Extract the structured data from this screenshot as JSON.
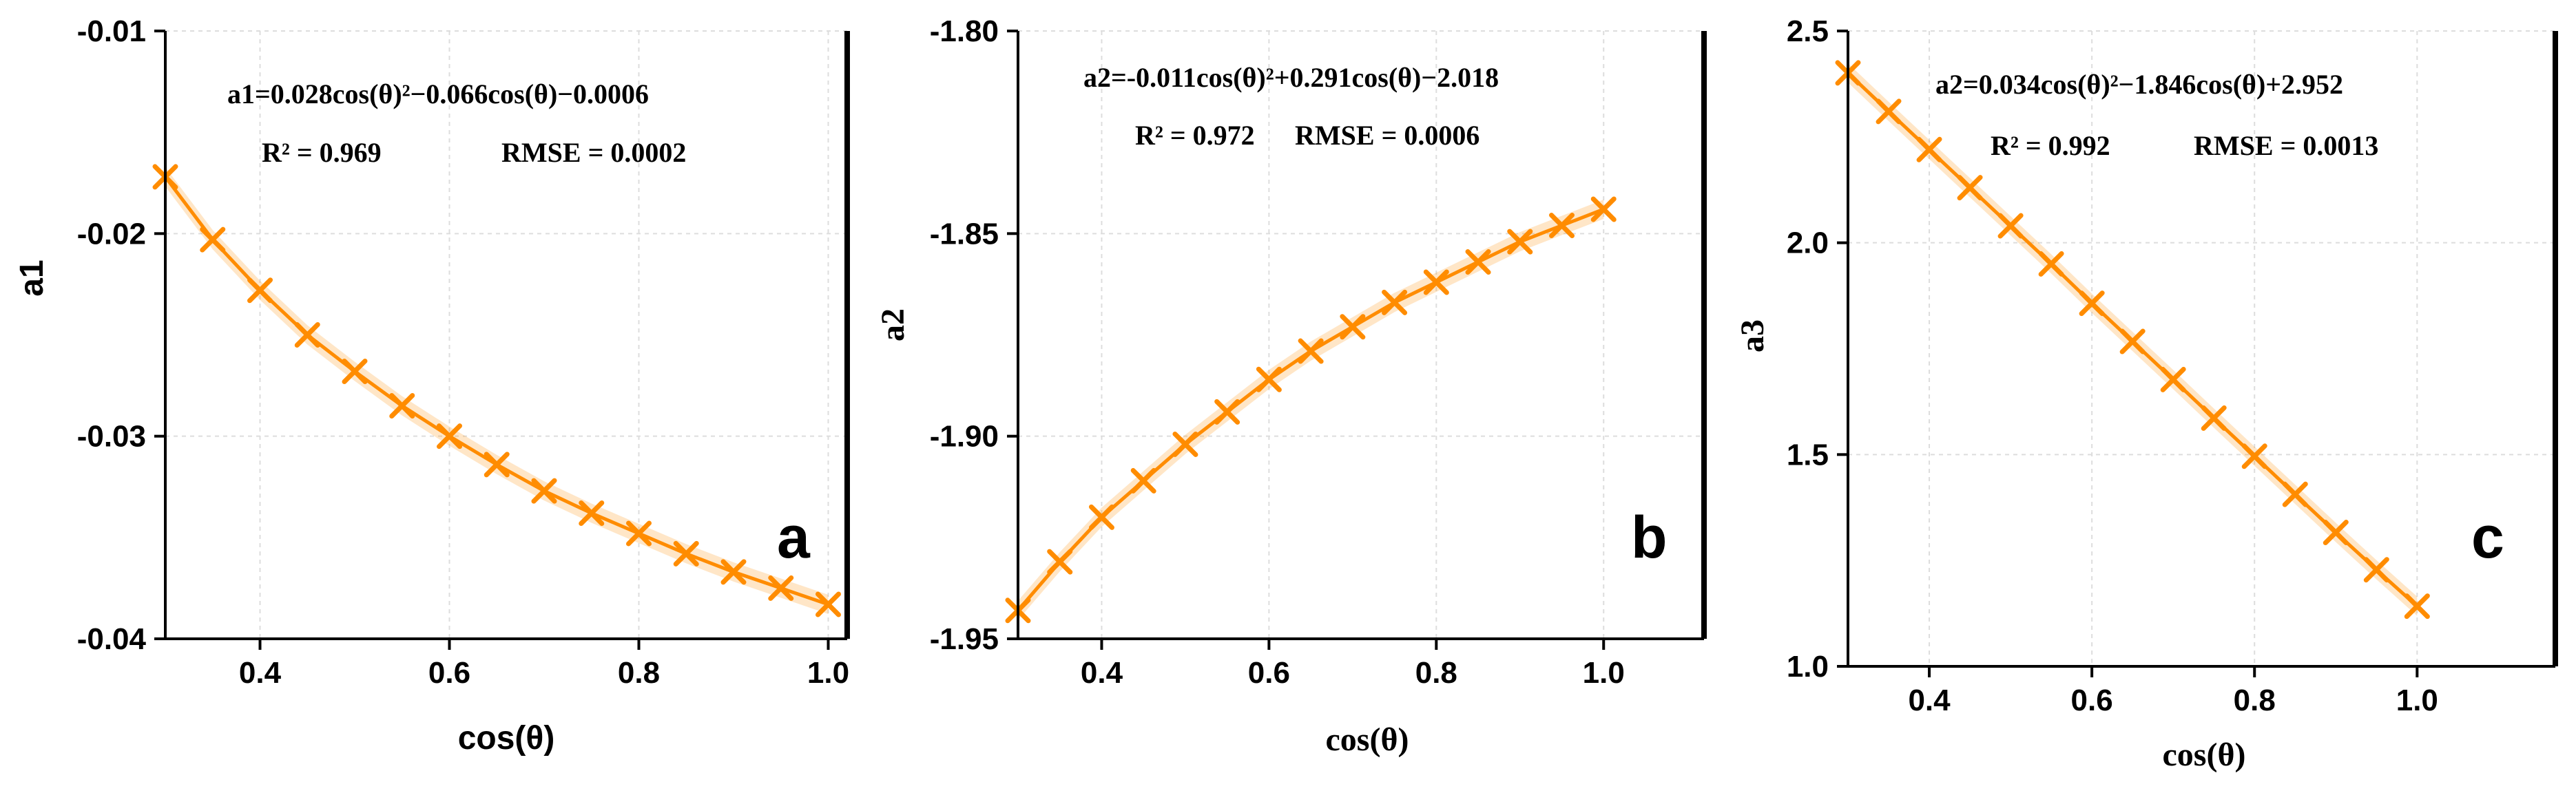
{
  "chart_data": [
    {
      "type": "line",
      "panel_letter": "a",
      "xlabel": "cos(θ)",
      "ylabel": "a1",
      "xlim": [
        0.3,
        1.02
      ],
      "ylim": [
        -0.04,
        -0.01
      ],
      "xticks": [
        0.4,
        0.6,
        0.8,
        1.0
      ],
      "xtick_labels": [
        "0.4",
        "0.6",
        "0.8",
        "1.0"
      ],
      "yticks": [
        -0.04,
        -0.03,
        -0.02,
        -0.01
      ],
      "ytick_labels": [
        "-0.04",
        "-0.03",
        "-0.02",
        "-0.01"
      ],
      "grid": true,
      "equation": "a1=0.028cos(θ)²−0.066cos(θ)−0.0006",
      "r2_text": "R² = 0.969",
      "rmse_text": "RMSE = 0.0002",
      "series": [
        {
          "name": "a1",
          "color": "#FF8C00",
          "marker": "x",
          "x": [
            0.3,
            0.35,
            0.4,
            0.45,
            0.5,
            0.55,
            0.6,
            0.65,
            0.7,
            0.75,
            0.8,
            0.85,
            0.9,
            0.95,
            1.0
          ],
          "y": [
            -0.0172,
            -0.0203,
            -0.0228,
            -0.025,
            -0.0268,
            -0.0285,
            -0.03,
            -0.0314,
            -0.0327,
            -0.0338,
            -0.0348,
            -0.0358,
            -0.0367,
            -0.0375,
            -0.0383
          ]
        }
      ]
    },
    {
      "type": "line",
      "panel_letter": "b",
      "xlabel": "cos(θ)",
      "ylabel": "a2",
      "xlim": [
        0.3,
        1.12
      ],
      "ylim": [
        -1.95,
        -1.8
      ],
      "xticks": [
        0.4,
        0.6,
        0.8,
        1.0
      ],
      "xtick_labels": [
        "0.4",
        "0.6",
        "0.8",
        "1.0"
      ],
      "yticks": [
        -1.95,
        -1.9,
        -1.85,
        -1.8
      ],
      "ytick_labels": [
        "-1.95",
        "-1.90",
        "-1.85",
        "-1.80"
      ],
      "grid": true,
      "equation": "a2=-0.011cos(θ)²+0.291cos(θ)−2.018",
      "r2_text": "R² = 0.972",
      "rmse_text": "RMSE = 0.0006",
      "series": [
        {
          "name": "a2",
          "color": "#FF8C00",
          "marker": "x",
          "x": [
            0.3,
            0.35,
            0.4,
            0.45,
            0.5,
            0.55,
            0.6,
            0.65,
            0.7,
            0.75,
            0.8,
            0.85,
            0.9,
            0.95,
            1.0
          ],
          "y": [
            -1.943,
            -1.931,
            -1.92,
            -1.911,
            -1.902,
            -1.894,
            -1.886,
            -1.879,
            -1.873,
            -1.867,
            -1.862,
            -1.857,
            -1.852,
            -1.848,
            -1.844
          ]
        }
      ]
    },
    {
      "type": "line",
      "panel_letter": "c",
      "xlabel": "cos(θ)",
      "ylabel": "a3",
      "xlim": [
        0.3,
        1.17
      ],
      "ylim": [
        1.0,
        2.5
      ],
      "xticks": [
        0.4,
        0.6,
        0.8,
        1.0
      ],
      "xtick_labels": [
        "0.4",
        "0.6",
        "0.8",
        "1.0"
      ],
      "yticks": [
        1.0,
        1.5,
        2.0,
        2.5
      ],
      "ytick_labels": [
        "1.0",
        "1.5",
        "2.0",
        "2.5"
      ],
      "grid": true,
      "equation": "a2=0.034cos(θ)²−1.846cos(θ)+2.952",
      "r2_text": "R² = 0.992",
      "rmse_text": "RMSE = 0.0013",
      "series": [
        {
          "name": "a3",
          "color": "#FF8C00",
          "marker": "x",
          "x": [
            0.3,
            0.35,
            0.4,
            0.45,
            0.5,
            0.55,
            0.6,
            0.65,
            0.7,
            0.75,
            0.8,
            0.85,
            0.9,
            0.95,
            1.0
          ],
          "y": [
            2.401,
            2.31,
            2.22,
            2.13,
            2.04,
            1.95,
            1.857,
            1.767,
            1.677,
            1.586,
            1.496,
            1.406,
            1.316,
            1.228,
            1.142
          ]
        }
      ]
    }
  ]
}
